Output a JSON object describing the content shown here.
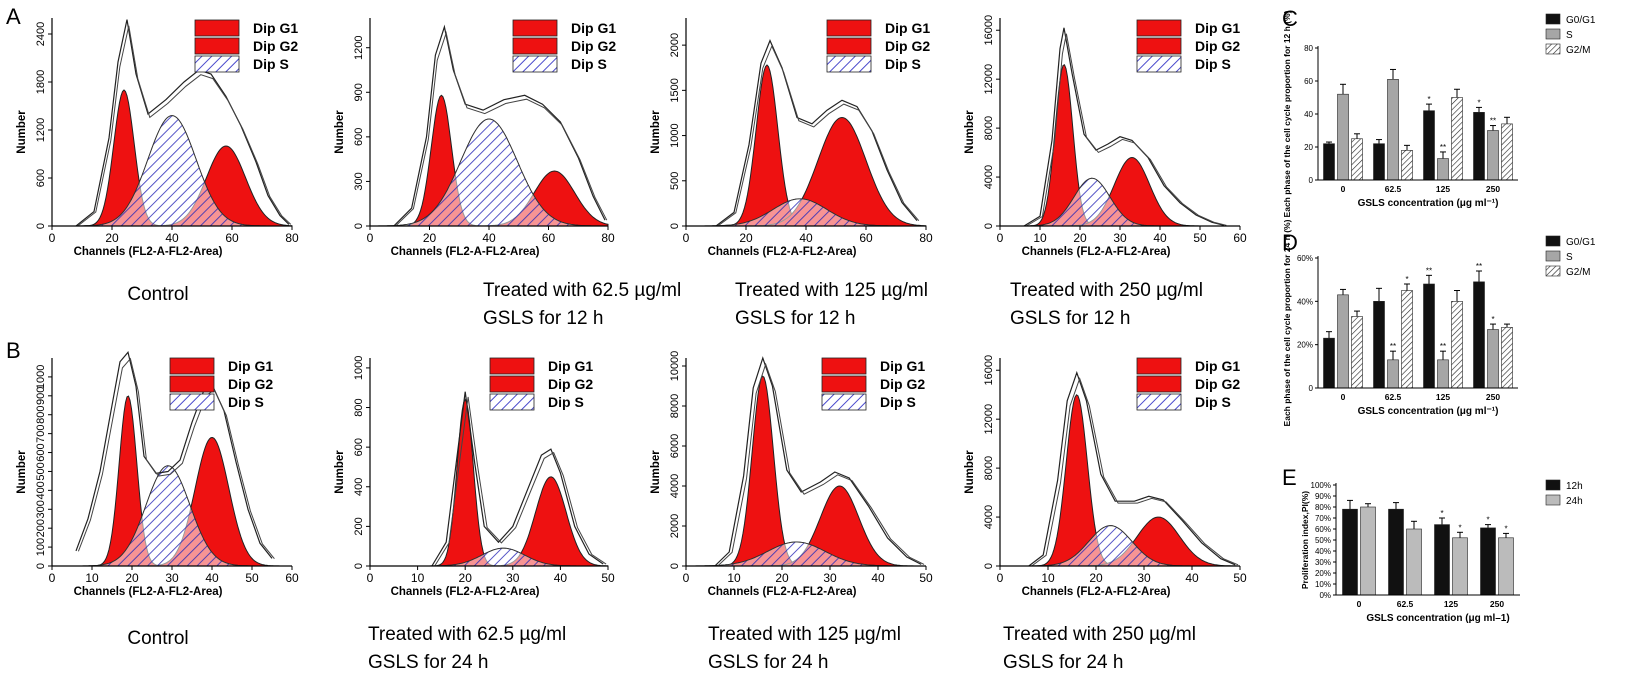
{
  "figure": {
    "panel_letters": {
      "A": "A",
      "B": "B",
      "C": "C",
      "D": "D",
      "E": "E"
    }
  },
  "legend_labels": {
    "g1": "Dip G1",
    "g2": "Dip G2",
    "s": "Dip S"
  },
  "colors": {
    "phase_fill": "#ee1111",
    "s_hatch": "#4a4acc",
    "bar_black": "#111111",
    "bar_gray": "#a6a6a6",
    "bar_light": "#bbbbbb"
  },
  "flow_panels": [
    {
      "id": "A1",
      "row": "A",
      "xlabel": "Channels (FL2-A-FL2-Area)",
      "ylabel": "Number",
      "xlim": [
        0,
        80
      ],
      "xticks": [
        0,
        20,
        40,
        60,
        80
      ],
      "ylim": [
        0,
        2600
      ],
      "yticks": [
        0,
        600,
        1200,
        1800,
        2400
      ],
      "caption": [
        "Control"
      ],
      "g1": {
        "mean": 24,
        "sd": 3.4,
        "peak": 1700
      },
      "g2": {
        "mean": 58,
        "sd": 6.5,
        "peak": 1000
      },
      "s": {
        "mean": 40,
        "sd": 8,
        "peak": 1380
      },
      "envelope": [
        [
          8,
          0
        ],
        [
          14,
          180
        ],
        [
          19,
          1100
        ],
        [
          22,
          2050
        ],
        [
          25,
          2580
        ],
        [
          28,
          1900
        ],
        [
          32,
          1400
        ],
        [
          38,
          1580
        ],
        [
          44,
          1800
        ],
        [
          49,
          1950
        ],
        [
          53,
          1900
        ],
        [
          58,
          1620
        ],
        [
          63,
          1250
        ],
        [
          68,
          800
        ],
        [
          72,
          380
        ],
        [
          76,
          130
        ],
        [
          79,
          20
        ]
      ]
    },
    {
      "id": "A2",
      "row": "A",
      "xlabel": "Channels (FL2-A-FL2-Area)",
      "ylabel": "Number",
      "xlim": [
        0,
        80
      ],
      "xticks": [
        0,
        20,
        40,
        60,
        80
      ],
      "ylim": [
        0,
        1400
      ],
      "yticks": [
        0,
        300,
        600,
        900,
        1200
      ],
      "caption": [
        "Treated with 62.5 µg/ml",
        "GSLS for 12 h"
      ],
      "g1": {
        "mean": 24,
        "sd": 3.4,
        "peak": 880
      },
      "g2": {
        "mean": 62,
        "sd": 6.8,
        "peak": 370
      },
      "s": {
        "mean": 40,
        "sd": 9.5,
        "peak": 720
      },
      "envelope": [
        [
          8,
          0
        ],
        [
          14,
          120
        ],
        [
          19,
          600
        ],
        [
          22,
          1150
        ],
        [
          25,
          1340
        ],
        [
          28,
          1050
        ],
        [
          32,
          820
        ],
        [
          38,
          780
        ],
        [
          45,
          850
        ],
        [
          52,
          880
        ],
        [
          58,
          820
        ],
        [
          64,
          700
        ],
        [
          70,
          460
        ],
        [
          75,
          200
        ],
        [
          79,
          40
        ]
      ]
    },
    {
      "id": "A3",
      "row": "A",
      "xlabel": "Channels (FL2-A-FL2-Area)",
      "ylabel": "Number",
      "xlim": [
        0,
        80
      ],
      "xticks": [
        0,
        20,
        40,
        60,
        80
      ],
      "ylim": [
        0,
        2300
      ],
      "yticks": [
        0,
        500,
        1000,
        1500,
        2000
      ],
      "caption": [
        "Treated with 125 µg/ml",
        "GSLS for 12 h"
      ],
      "g1": {
        "mean": 27,
        "sd": 3.6,
        "peak": 1780
      },
      "g2": {
        "mean": 52,
        "sd": 8,
        "peak": 1200
      },
      "s": {
        "mean": 38,
        "sd": 9,
        "peak": 300
      },
      "envelope": [
        [
          10,
          0
        ],
        [
          16,
          150
        ],
        [
          21,
          900
        ],
        [
          25,
          1800
        ],
        [
          28,
          2050
        ],
        [
          32,
          1750
        ],
        [
          37,
          1200
        ],
        [
          42,
          1130
        ],
        [
          47,
          1280
        ],
        [
          52,
          1390
        ],
        [
          57,
          1320
        ],
        [
          62,
          1050
        ],
        [
          67,
          620
        ],
        [
          72,
          260
        ],
        [
          77,
          60
        ]
      ]
    },
    {
      "id": "A4",
      "row": "A",
      "xlabel": "Channels (FL2-A-FL2-Area)",
      "ylabel": "Number",
      "xlim": [
        0,
        60
      ],
      "xticks": [
        0,
        10,
        20,
        30,
        40,
        50,
        60
      ],
      "ylim": [
        0,
        17000
      ],
      "yticks": [
        0,
        4000,
        8000,
        12000,
        16000
      ],
      "caption": [
        "Treated with 250 µg/ml",
        "GSLS for 12 h"
      ],
      "g1": {
        "mean": 16,
        "sd": 2.2,
        "peak": 13200
      },
      "g2": {
        "mean": 33,
        "sd": 4.4,
        "peak": 5600
      },
      "s": {
        "mean": 23,
        "sd": 4.5,
        "peak": 3900
      },
      "envelope": [
        [
          6,
          0
        ],
        [
          10,
          800
        ],
        [
          13,
          7000
        ],
        [
          15,
          14500
        ],
        [
          16,
          16200
        ],
        [
          18,
          12500
        ],
        [
          21,
          7500
        ],
        [
          24,
          6200
        ],
        [
          27,
          6700
        ],
        [
          30,
          7300
        ],
        [
          33,
          7000
        ],
        [
          37,
          5600
        ],
        [
          41,
          3300
        ],
        [
          45,
          1900
        ],
        [
          49,
          900
        ],
        [
          53,
          300
        ],
        [
          56,
          60
        ]
      ]
    },
    {
      "id": "B1",
      "row": "B",
      "xlabel": "Channels (FL2-A-FL2-Area)",
      "ylabel": "Number",
      "xlim": [
        0,
        60
      ],
      "xticks": [
        0,
        10,
        20,
        30,
        40,
        50,
        60
      ],
      "ylim": [
        0,
        1100
      ],
      "yticks": [
        0,
        100,
        200,
        300,
        400,
        500,
        600,
        700,
        800,
        900,
        1000
      ],
      "caption": [
        "Control"
      ],
      "g1": {
        "mean": 19,
        "sd": 2.2,
        "peak": 900
      },
      "g2": {
        "mean": 40,
        "sd": 4.2,
        "peak": 680
      },
      "s": {
        "mean": 29,
        "sd": 5.5,
        "peak": 530
      },
      "envelope": [
        [
          6,
          80
        ],
        [
          9,
          250
        ],
        [
          12,
          500
        ],
        [
          15,
          850
        ],
        [
          17,
          1080
        ],
        [
          19,
          1130
        ],
        [
          21,
          950
        ],
        [
          23,
          580
        ],
        [
          26,
          490
        ],
        [
          29,
          500
        ],
        [
          32,
          560
        ],
        [
          35,
          760
        ],
        [
          38,
          930
        ],
        [
          40,
          960
        ],
        [
          43,
          820
        ],
        [
          46,
          550
        ],
        [
          49,
          300
        ],
        [
          52,
          120
        ],
        [
          55,
          40
        ]
      ]
    },
    {
      "id": "B2",
      "row": "B",
      "xlabel": "Channels (FL2-A-FL2-Area)",
      "ylabel": "Number",
      "xlim": [
        0,
        50
      ],
      "xticks": [
        0,
        10,
        20,
        30,
        40,
        50
      ],
      "ylim": [
        0,
        1050
      ],
      "yticks": [
        0,
        200,
        400,
        600,
        800,
        1000
      ],
      "caption": [
        "Treated with 62.5 µg/ml",
        "GSLS for 24 h"
      ],
      "g1": {
        "mean": 20,
        "sd": 1.7,
        "peak": 840
      },
      "g2": {
        "mean": 38,
        "sd": 3.2,
        "peak": 450
      },
      "s": {
        "mean": 28,
        "sd": 4.5,
        "peak": 90
      },
      "envelope": [
        [
          13,
          0
        ],
        [
          16,
          120
        ],
        [
          18,
          500
        ],
        [
          20,
          880
        ],
        [
          22,
          520
        ],
        [
          24,
          200
        ],
        [
          27,
          120
        ],
        [
          30,
          200
        ],
        [
          33,
          380
        ],
        [
          36,
          560
        ],
        [
          38,
          590
        ],
        [
          40,
          470
        ],
        [
          43,
          200
        ],
        [
          46,
          60
        ],
        [
          49,
          10
        ]
      ]
    },
    {
      "id": "B3",
      "row": "B",
      "xlabel": "Channels (FL2-A-FL2-Area)",
      "ylabel": "Number",
      "xlim": [
        0,
        50
      ],
      "xticks": [
        0,
        10,
        20,
        30,
        40,
        50
      ],
      "ylim": [
        0,
        10400
      ],
      "yticks": [
        0,
        2000,
        4000,
        6000,
        8000,
        10000
      ],
      "caption": [
        "Treated with 125 µg/ml",
        "GSLS for 24 h"
      ],
      "g1": {
        "mean": 16,
        "sd": 2.2,
        "peak": 9500
      },
      "g2": {
        "mean": 32,
        "sd": 4,
        "peak": 4000
      },
      "s": {
        "mean": 23,
        "sd": 6,
        "peak": 1200
      },
      "envelope": [
        [
          6,
          0
        ],
        [
          9,
          700
        ],
        [
          12,
          4500
        ],
        [
          14,
          8900
        ],
        [
          16,
          10400
        ],
        [
          18,
          9000
        ],
        [
          21,
          4800
        ],
        [
          24,
          3700
        ],
        [
          28,
          4200
        ],
        [
          31,
          4700
        ],
        [
          34,
          4400
        ],
        [
          38,
          3000
        ],
        [
          42,
          1400
        ],
        [
          46,
          450
        ],
        [
          49,
          80
        ]
      ]
    },
    {
      "id": "B4",
      "row": "B",
      "xlabel": "Channels (FL2-A-FL2-Area)",
      "ylabel": "Number",
      "xlim": [
        0,
        50
      ],
      "xticks": [
        0,
        10,
        20,
        30,
        40,
        50
      ],
      "ylim": [
        0,
        17000
      ],
      "yticks": [
        0,
        4000,
        8000,
        12000,
        16000
      ],
      "caption": [
        "Treated with 250 µg/ml",
        "GSLS for 24 h"
      ],
      "g1": {
        "mean": 16,
        "sd": 2.2,
        "peak": 14000
      },
      "g2": {
        "mean": 33,
        "sd": 4.4,
        "peak": 4000
      },
      "s": {
        "mean": 23,
        "sd": 4.5,
        "peak": 3300
      },
      "envelope": [
        [
          6,
          0
        ],
        [
          9,
          900
        ],
        [
          12,
          7000
        ],
        [
          14,
          13500
        ],
        [
          16,
          15800
        ],
        [
          18,
          13500
        ],
        [
          21,
          7500
        ],
        [
          24,
          5300
        ],
        [
          28,
          5300
        ],
        [
          31,
          5700
        ],
        [
          34,
          5400
        ],
        [
          38,
          3700
        ],
        [
          42,
          1900
        ],
        [
          46,
          600
        ],
        [
          49,
          100
        ]
      ]
    }
  ],
  "chart_data": [
    {
      "id": "C",
      "type": "bar",
      "panel": "C",
      "categories": [
        "0",
        "62.5",
        "125",
        "250"
      ],
      "series": [
        {
          "name": "G0/G1",
          "values": [
            22,
            22,
            42,
            41
          ],
          "errors": [
            1,
            2.5,
            4,
            3
          ],
          "sig": [
            "",
            "",
            "*",
            "*"
          ],
          "color": "#111111",
          "hatch": false
        },
        {
          "name": "S",
          "values": [
            52,
            61,
            13,
            30
          ],
          "errors": [
            6,
            6,
            4,
            3
          ],
          "sig": [
            "",
            "",
            "**",
            "**"
          ],
          "color": "#a6a6a6",
          "hatch": false
        },
        {
          "name": "G2/M",
          "values": [
            25,
            18,
            50,
            34
          ],
          "errors": [
            3,
            3,
            5,
            4
          ],
          "sig": [
            "",
            "",
            "",
            ""
          ],
          "color": "#ffffff",
          "hatch": true
        }
      ],
      "ylabel": "Each phase of the cell cycle proportion for 12 h (%)",
      "xlabel": "GSLS concentration (μg ml⁻¹)",
      "ylim": [
        0,
        80
      ],
      "yticks": [
        "0",
        "20",
        "40",
        "60",
        "80"
      ],
      "ytick_values": [
        0,
        20,
        40,
        60,
        80
      ],
      "legend_position": "top-right"
    },
    {
      "id": "D",
      "type": "bar",
      "panel": "D",
      "categories": [
        "0",
        "62.5",
        "125",
        "250"
      ],
      "series": [
        {
          "name": "G0/G1",
          "values": [
            23,
            40,
            48,
            49
          ],
          "errors": [
            3,
            6,
            4,
            5
          ],
          "sig": [
            "",
            "",
            "**",
            "**"
          ],
          "color": "#111111",
          "hatch": false
        },
        {
          "name": "S",
          "values": [
            43,
            13,
            13,
            27
          ],
          "errors": [
            2.5,
            4,
            4,
            2.5
          ],
          "sig": [
            "",
            "**",
            "**",
            "*"
          ],
          "color": "#a6a6a6",
          "hatch": false
        },
        {
          "name": "G2/M",
          "values": [
            33,
            45,
            40,
            28
          ],
          "errors": [
            2.5,
            3,
            5,
            1.5
          ],
          "sig": [
            "",
            "*",
            "",
            ""
          ],
          "color": "#ffffff",
          "hatch": true
        }
      ],
      "ylabel": "Each phase of the cell cycle proportion for 24 h (%)",
      "xlabel": "GSLS concentration (μg ml⁻¹)",
      "ylim": [
        0,
        60
      ],
      "yticks": [
        "0",
        "20%",
        "40%",
        "60%"
      ],
      "ytick_values": [
        0,
        20,
        40,
        60
      ],
      "legend_position": "top-right"
    },
    {
      "id": "E",
      "type": "bar",
      "panel": "E",
      "categories": [
        "0",
        "62.5",
        "125",
        "250"
      ],
      "series": [
        {
          "name": "12h",
          "values": [
            78,
            78,
            64,
            61
          ],
          "errors": [
            8,
            6,
            6,
            3
          ],
          "sig": [
            "",
            "",
            "*",
            "*"
          ],
          "color": "#111111",
          "hatch": false
        },
        {
          "name": "24h",
          "values": [
            80,
            60,
            52,
            52
          ],
          "errors": [
            3,
            7,
            5,
            4
          ],
          "sig": [
            "",
            "",
            "*",
            "*"
          ],
          "color": "#bbbbbb",
          "hatch": false
        }
      ],
      "ylabel": "Proliferation index,PI(%)",
      "xlabel": "GSLS concentration (μg ml–1)",
      "ylim": [
        0,
        100
      ],
      "yticks": [
        "0%",
        "10%",
        "20%",
        "30%",
        "40%",
        "50%",
        "60%",
        "70%",
        "80%",
        "90%",
        "100%"
      ],
      "ytick_values": [
        0,
        10,
        20,
        30,
        40,
        50,
        60,
        70,
        80,
        90,
        100
      ],
      "legend_position": "top-right"
    }
  ]
}
